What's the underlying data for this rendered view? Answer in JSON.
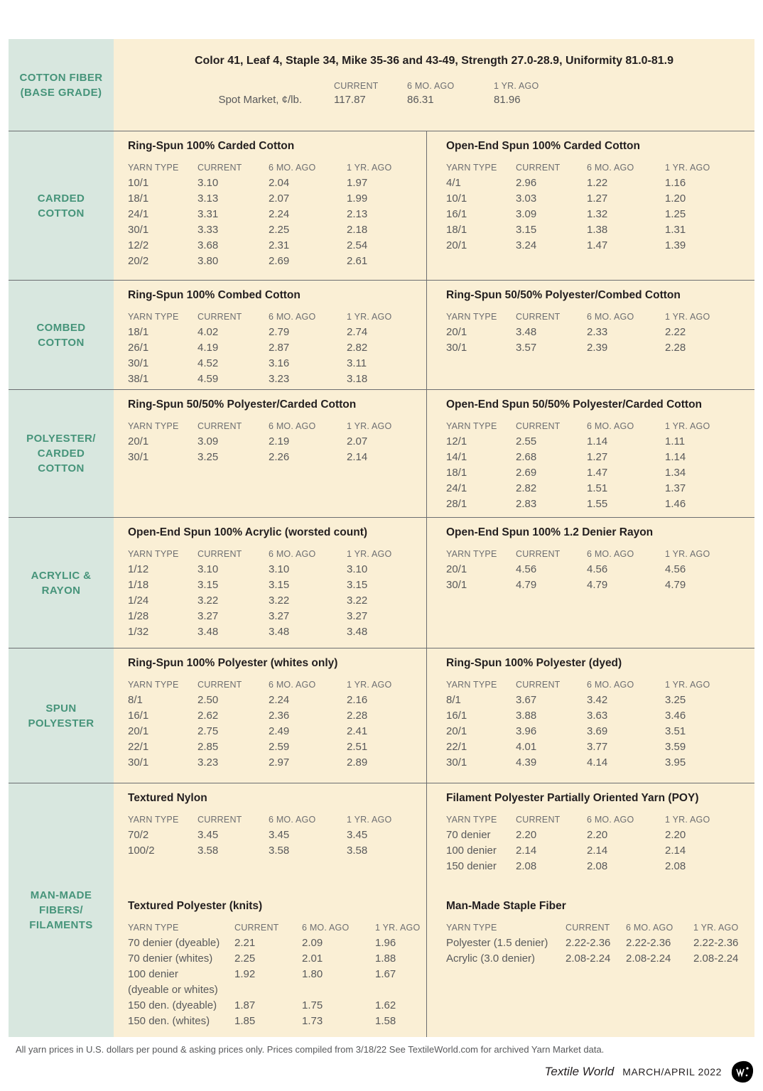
{
  "header": {
    "side_label": "COTTON FIBER\n(BASE GRADE)",
    "title": "Color 41, Leaf 4, Staple 34, Mike 35-36 and 43-49, Strength 27.0-28.9, Uniformity 81.0-81.9",
    "row_label": "Spot Market, ¢/lb.",
    "columns": [
      "CURRENT",
      "6 MO. AGO",
      "1 YR. AGO"
    ],
    "values": [
      "117.87",
      "86.31",
      "81.96"
    ]
  },
  "column_headers": [
    "YARN TYPE",
    "CURRENT",
    "6 MO. AGO",
    "1 YR. AGO"
  ],
  "sections": [
    {
      "side_label": "CARDED\nCOTTON",
      "left": [
        {
          "title": "Ring-Spun 100% Carded Cotton",
          "rows": [
            [
              "10/1",
              "3.10",
              "2.04",
              "1.97"
            ],
            [
              "18/1",
              "3.13",
              "2.07",
              "1.99"
            ],
            [
              "24/1",
              "3.31",
              "2.24",
              "2.13"
            ],
            [
              "30/1",
              "3.33",
              "2.25",
              "2.18"
            ],
            [
              "12/2",
              "3.68",
              "2.31",
              "2.54"
            ],
            [
              "20/2",
              "3.80",
              "2.69",
              "2.61"
            ]
          ]
        }
      ],
      "right": [
        {
          "title": "Open-End Spun 100% Carded Cotton",
          "rows": [
            [
              "4/1",
              "2.96",
              "1.22",
              "1.16"
            ],
            [
              "10/1",
              "3.03",
              "1.27",
              "1.20"
            ],
            [
              "16/1",
              "3.09",
              "1.32",
              "1.25"
            ],
            [
              "18/1",
              "3.15",
              "1.38",
              "1.31"
            ],
            [
              "20/1",
              "3.24",
              "1.47",
              "1.39"
            ]
          ]
        }
      ]
    },
    {
      "side_label": "COMBED\nCOTTON",
      "left": [
        {
          "title": "Ring-Spun 100% Combed Cotton",
          "rows": [
            [
              "18/1",
              "4.02",
              "2.79",
              "2.74"
            ],
            [
              "26/1",
              "4.19",
              "2.87",
              "2.82"
            ],
            [
              "30/1",
              "4.52",
              "3.16",
              "3.11"
            ],
            [
              "38/1",
              "4.59",
              "3.23",
              "3.18"
            ]
          ]
        }
      ],
      "right": [
        {
          "title": "Ring-Spun 50/50% Polyester/Combed Cotton",
          "rows": [
            [
              "20/1",
              "3.48",
              "2.33",
              "2.22"
            ],
            [
              "30/1",
              "3.57",
              "2.39",
              "2.28"
            ]
          ]
        }
      ]
    },
    {
      "side_label": "POLYESTER/\nCARDED\nCOTTON",
      "left": [
        {
          "title": "Ring-Spun 50/50% Polyester/Carded Cotton",
          "rows": [
            [
              "20/1",
              "3.09",
              "2.19",
              "2.07"
            ],
            [
              "30/1",
              "3.25",
              "2.26",
              "2.14"
            ]
          ]
        }
      ],
      "right": [
        {
          "title": "Open-End Spun 50/50% Polyester/Carded Cotton",
          "rows": [
            [
              "12/1",
              "2.55",
              "1.14",
              "1.11"
            ],
            [
              "14/1",
              "2.68",
              "1.27",
              "1.14"
            ],
            [
              "18/1",
              "2.69",
              "1.47",
              "1.34"
            ],
            [
              "24/1",
              "2.82",
              "1.51",
              "1.37"
            ],
            [
              "28/1",
              "2.83",
              "1.55",
              "1.46"
            ]
          ]
        }
      ]
    },
    {
      "side_label": "ACRYLIC &\nRAYON",
      "left": [
        {
          "title": "Open-End Spun 100% Acrylic (worsted count)",
          "rows": [
            [
              "1/12",
              "3.10",
              "3.10",
              "3.10"
            ],
            [
              "1/18",
              "3.15",
              "3.15",
              "3.15"
            ],
            [
              "1/24",
              "3.22",
              "3.22",
              "3.22"
            ],
            [
              "1/28",
              "3.27",
              "3.27",
              "3.27"
            ],
            [
              "1/32",
              "3.48",
              "3.48",
              "3.48"
            ]
          ]
        }
      ],
      "right": [
        {
          "title": "Open-End Spun 100% 1.2 Denier Rayon",
          "rows": [
            [
              "20/1",
              "4.56",
              "4.56",
              "4.56"
            ],
            [
              "30/1",
              "4.79",
              "4.79",
              "4.79"
            ]
          ]
        }
      ]
    },
    {
      "side_label": "SPUN\nPOLYESTER",
      "left": [
        {
          "title": "Ring-Spun 100% Polyester (whites only)",
          "rows": [
            [
              "8/1",
              "2.50",
              "2.24",
              "2.16"
            ],
            [
              "16/1",
              "2.62",
              "2.36",
              "2.28"
            ],
            [
              "20/1",
              "2.75",
              "2.49",
              "2.41"
            ],
            [
              "22/1",
              "2.85",
              "2.59",
              "2.51"
            ],
            [
              "30/1",
              "3.23",
              "2.97",
              "2.89"
            ]
          ]
        }
      ],
      "right": [
        {
          "title": "Ring-Spun 100% Polyester (dyed)",
          "rows": [
            [
              "8/1",
              "3.67",
              "3.42",
              "3.25"
            ],
            [
              "16/1",
              "3.88",
              "3.63",
              "3.46"
            ],
            [
              "20/1",
              "3.96",
              "3.69",
              "3.51"
            ],
            [
              "22/1",
              "4.01",
              "3.77",
              "3.59"
            ],
            [
              "30/1",
              "4.39",
              "4.14",
              "3.95"
            ]
          ]
        }
      ]
    },
    {
      "side_label": "MAN-MADE\nFIBERS/\nFILAMENTS",
      "left": [
        {
          "title": "Textured Nylon",
          "rows": [
            [
              "70/2",
              "3.45",
              "3.45",
              "3.45"
            ],
            [
              "100/2",
              "3.58",
              "3.58",
              "3.58"
            ]
          ]
        },
        {
          "title": "Textured Polyester (knits)",
          "variant": "wide-left",
          "rows": [
            [
              "70 denier (dyeable)",
              "2.21",
              "2.09",
              "1.96"
            ],
            [
              "70 denier (whites)",
              "2.25",
              "2.01",
              "1.88"
            ],
            [
              "100 denier\n(dyeable or whites)",
              "1.92",
              "1.80",
              "1.67"
            ],
            [
              "150 den. (dyeable)",
              "1.87",
              "1.75",
              "1.62"
            ],
            [
              "150 den. (whites)",
              "1.85",
              "1.73",
              "1.58"
            ]
          ]
        }
      ],
      "right": [
        {
          "title": "Filament Polyester Partially Oriented Yarn (POY)",
          "rows": [
            [
              "70 denier",
              "2.20",
              "2.20",
              "2.20"
            ],
            [
              "100 denier",
              "2.14",
              "2.14",
              "2.14"
            ],
            [
              "150 denier",
              "2.08",
              "2.08",
              "2.08"
            ]
          ]
        },
        {
          "title": "Man-Made Staple Fiber",
          "variant": "wide-right",
          "rows": [
            [
              "Polyester (1.5 denier)",
              "2.22-2.36",
              "2.22-2.36",
              "2.22-2.36"
            ],
            [
              "Acrylic (3.0 denier)",
              "2.08-2.24",
              "2.08-2.24",
              "2.08-2.24"
            ]
          ]
        }
      ]
    }
  ],
  "footnote": "All yarn prices in U.S. dollars per pound & asking prices only. Prices compiled from 3/18/22 See TextileWorld.com for archived Yarn Market data.",
  "footer": {
    "magazine": "Textile World",
    "issue": "MARCH/APRIL 2022"
  },
  "colors": {
    "side_panel": "#d8e7df",
    "side_text": "#46947a",
    "table_bg": "#faefd5",
    "divider": "#6b6d70",
    "title_text": "#231f20",
    "data_text": "#58595b"
  }
}
